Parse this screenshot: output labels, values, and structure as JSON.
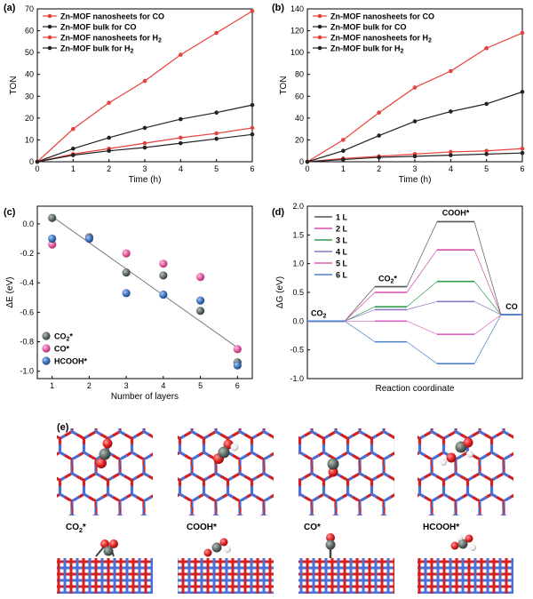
{
  "panels": {
    "a": {
      "label": "(a)",
      "xlabel": "Time (h)",
      "ylabel": "TON",
      "xlim": [
        0,
        6
      ],
      "ylim": [
        0,
        70
      ],
      "xticks": [
        0,
        1,
        2,
        3,
        4,
        5,
        6
      ],
      "yticks": [
        0,
        10,
        20,
        30,
        40,
        50,
        60,
        70
      ],
      "legend": [
        {
          "text": "Zn-MOF nanosheets for CO",
          "sub": "",
          "color": "#e8413c"
        },
        {
          "text": "Zn-MOF bulk for CO",
          "sub": "",
          "color": "#222222"
        },
        {
          "text": "Zn-MOF nanosheets for H",
          "sub": "2",
          "color": "#e8413c"
        },
        {
          "text": "Zn-MOF bulk for H",
          "sub": "2",
          "color": "#222222"
        }
      ]
    },
    "b": {
      "label": "(b)",
      "xlabel": "Time (h)",
      "ylabel": "TON",
      "xlim": [
        0,
        6
      ],
      "ylim": [
        0,
        140
      ],
      "xticks": [
        0,
        1,
        2,
        3,
        4,
        5,
        6
      ],
      "yticks": [
        0,
        20,
        40,
        60,
        80,
        100,
        120,
        140
      ],
      "legend": [
        {
          "text": "Zn-MOF nanosheets for CO",
          "sub": "",
          "color": "#e8413c"
        },
        {
          "text": "Zn-MOF bulk for CO",
          "sub": "",
          "color": "#222222"
        },
        {
          "text": "Zn-MOF nanosheets for H",
          "sub": "2",
          "color": "#e8413c"
        },
        {
          "text": "Zn-MOF bulk for H",
          "sub": "2",
          "color": "#222222"
        }
      ]
    },
    "c": {
      "label": "(c)",
      "xlabel": "Number of layers",
      "ylabel": "ΔE (eV)",
      "xlim": [
        0.6,
        6.4
      ],
      "ylim": [
        -1.05,
        0.12
      ],
      "xticks": [
        1,
        2,
        3,
        4,
        5,
        6
      ],
      "yticks": [
        "0.0",
        "-0.2",
        "-0.4",
        "-0.6",
        "-0.8",
        "-1.0"
      ],
      "legend": [
        {
          "text": "CO",
          "sup": "2",
          "star": "*",
          "color": "#5a6660"
        },
        {
          "text": "CO*",
          "sup": "",
          "star": "",
          "color": "#e0559a"
        },
        {
          "text": "HCOOH*",
          "sup": "",
          "star": "",
          "color": "#3a6fb5"
        }
      ]
    },
    "d": {
      "label": "(d)",
      "xlabel": "Reaction coordinate",
      "ylabel": "ΔG (eV)",
      "ylim": [
        -1.0,
        2.0
      ],
      "yticks": [
        "2.0",
        "1.5",
        "1.0",
        "0.5",
        "0.0",
        "-0.5",
        "-1.0"
      ],
      "state_labels": {
        "co2": "CO",
        "co2_sub": "2",
        "co2ads": "CO",
        "co2ads_sub": "2",
        "co2ads_star": "*",
        "cooh": "COOH*",
        "co": "CO"
      },
      "legend": [
        {
          "text": "1 L",
          "color": "#555555"
        },
        {
          "text": "2 L",
          "color": "#d64aa8"
        },
        {
          "text": "3 L",
          "color": "#2e9c4c"
        },
        {
          "text": "4 L",
          "color": "#8a76c4"
        },
        {
          "text": "5 L",
          "color": "#e062c0"
        },
        {
          "text": "6 L",
          "color": "#4a82c8"
        }
      ]
    },
    "e": {
      "label": "(e)",
      "structures": [
        {
          "label": "CO",
          "sub": "2",
          "star": "*"
        },
        {
          "label": "COOH*",
          "sub": "",
          "star": ""
        },
        {
          "label": "CO*",
          "sub": "",
          "star": ""
        },
        {
          "label": "HCOOH*",
          "sub": "",
          "star": ""
        }
      ]
    }
  },
  "colors": {
    "red": "#e8413c",
    "black": "#222222",
    "bond_blue": "#4a6fd6",
    "bond_red": "#d42020",
    "gray_atom": "#505854",
    "white_atom": "#f2f2f2"
  },
  "chart_data": [
    {
      "type": "line",
      "panel": "a",
      "x": [
        0,
        1,
        2,
        3,
        4,
        5,
        6
      ],
      "series": [
        {
          "name": "Zn-MOF nanosheets for CO",
          "values": [
            0,
            15,
            27,
            37,
            49,
            59,
            69
          ]
        },
        {
          "name": "Zn-MOF bulk for CO",
          "values": [
            0,
            6,
            11,
            15.5,
            19.5,
            22.5,
            26
          ]
        },
        {
          "name": "Zn-MOF nanosheets for H2",
          "values": [
            0,
            3.5,
            6,
            8.5,
            11,
            13,
            15.5
          ]
        },
        {
          "name": "Zn-MOF bulk for H2",
          "values": [
            0,
            3,
            5,
            6.5,
            8.5,
            10.5,
            12.5
          ]
        }
      ],
      "xlabel": "Time (h)",
      "ylabel": "TON",
      "ylim": [
        0,
        70
      ]
    },
    {
      "type": "line",
      "panel": "b",
      "x": [
        0,
        1,
        2,
        3,
        4,
        5,
        6
      ],
      "series": [
        {
          "name": "Zn-MOF nanosheets for CO",
          "values": [
            0,
            20,
            45,
            68,
            83,
            104,
            118
          ]
        },
        {
          "name": "Zn-MOF bulk for CO",
          "values": [
            0,
            10,
            24,
            37,
            46,
            53,
            64
          ]
        },
        {
          "name": "Zn-MOF nanosheets for H2",
          "values": [
            0,
            3,
            5,
            7,
            9,
            10,
            12
          ]
        },
        {
          "name": "Zn-MOF bulk for H2",
          "values": [
            0,
            2,
            4,
            5,
            6,
            7,
            8
          ]
        }
      ],
      "xlabel": "Time (h)",
      "ylabel": "TON",
      "ylim": [
        0,
        140
      ]
    },
    {
      "type": "scatter",
      "panel": "c",
      "series": [
        {
          "name": "CO2*",
          "x": [
            1,
            2,
            3,
            4,
            5,
            6
          ],
          "values": [
            0.04,
            -0.09,
            -0.33,
            -0.35,
            -0.59,
            -0.94
          ]
        },
        {
          "name": "CO*",
          "x": [
            1,
            2,
            3,
            4,
            5,
            6
          ],
          "values": [
            -0.14,
            -0.1,
            -0.2,
            -0.27,
            -0.36,
            -0.85
          ]
        },
        {
          "name": "HCOOH*",
          "x": [
            1,
            2,
            3,
            4,
            5,
            6
          ],
          "values": [
            -0.1,
            -0.1,
            -0.47,
            -0.48,
            -0.52,
            -0.96
          ]
        }
      ],
      "fit_line": {
        "x": [
          1,
          6
        ],
        "y": [
          0.05,
          -0.84
        ]
      },
      "xlabel": "Number of layers",
      "ylabel": "ΔE (eV)",
      "ylim": [
        -1.05,
        0.12
      ]
    },
    {
      "type": "line",
      "panel": "d",
      "categories": [
        "CO2",
        "CO2*",
        "COOH*",
        "CO"
      ],
      "series": [
        {
          "name": "1 L",
          "values": [
            0,
            0.6,
            1.73,
            0.11
          ]
        },
        {
          "name": "2 L",
          "values": [
            0,
            0.5,
            1.24,
            0.11
          ]
        },
        {
          "name": "3 L",
          "values": [
            0,
            0.25,
            0.69,
            0.11
          ]
        },
        {
          "name": "4 L",
          "values": [
            0,
            0.2,
            0.34,
            0.11
          ]
        },
        {
          "name": "5 L",
          "values": [
            0,
            0.0,
            -0.23,
            0.11
          ]
        },
        {
          "name": "6 L",
          "values": [
            0,
            -0.36,
            -0.74,
            0.11
          ]
        }
      ],
      "xlabel": "Reaction coordinate",
      "ylabel": "ΔG (eV)",
      "ylim": [
        -1.0,
        2.0
      ]
    }
  ]
}
